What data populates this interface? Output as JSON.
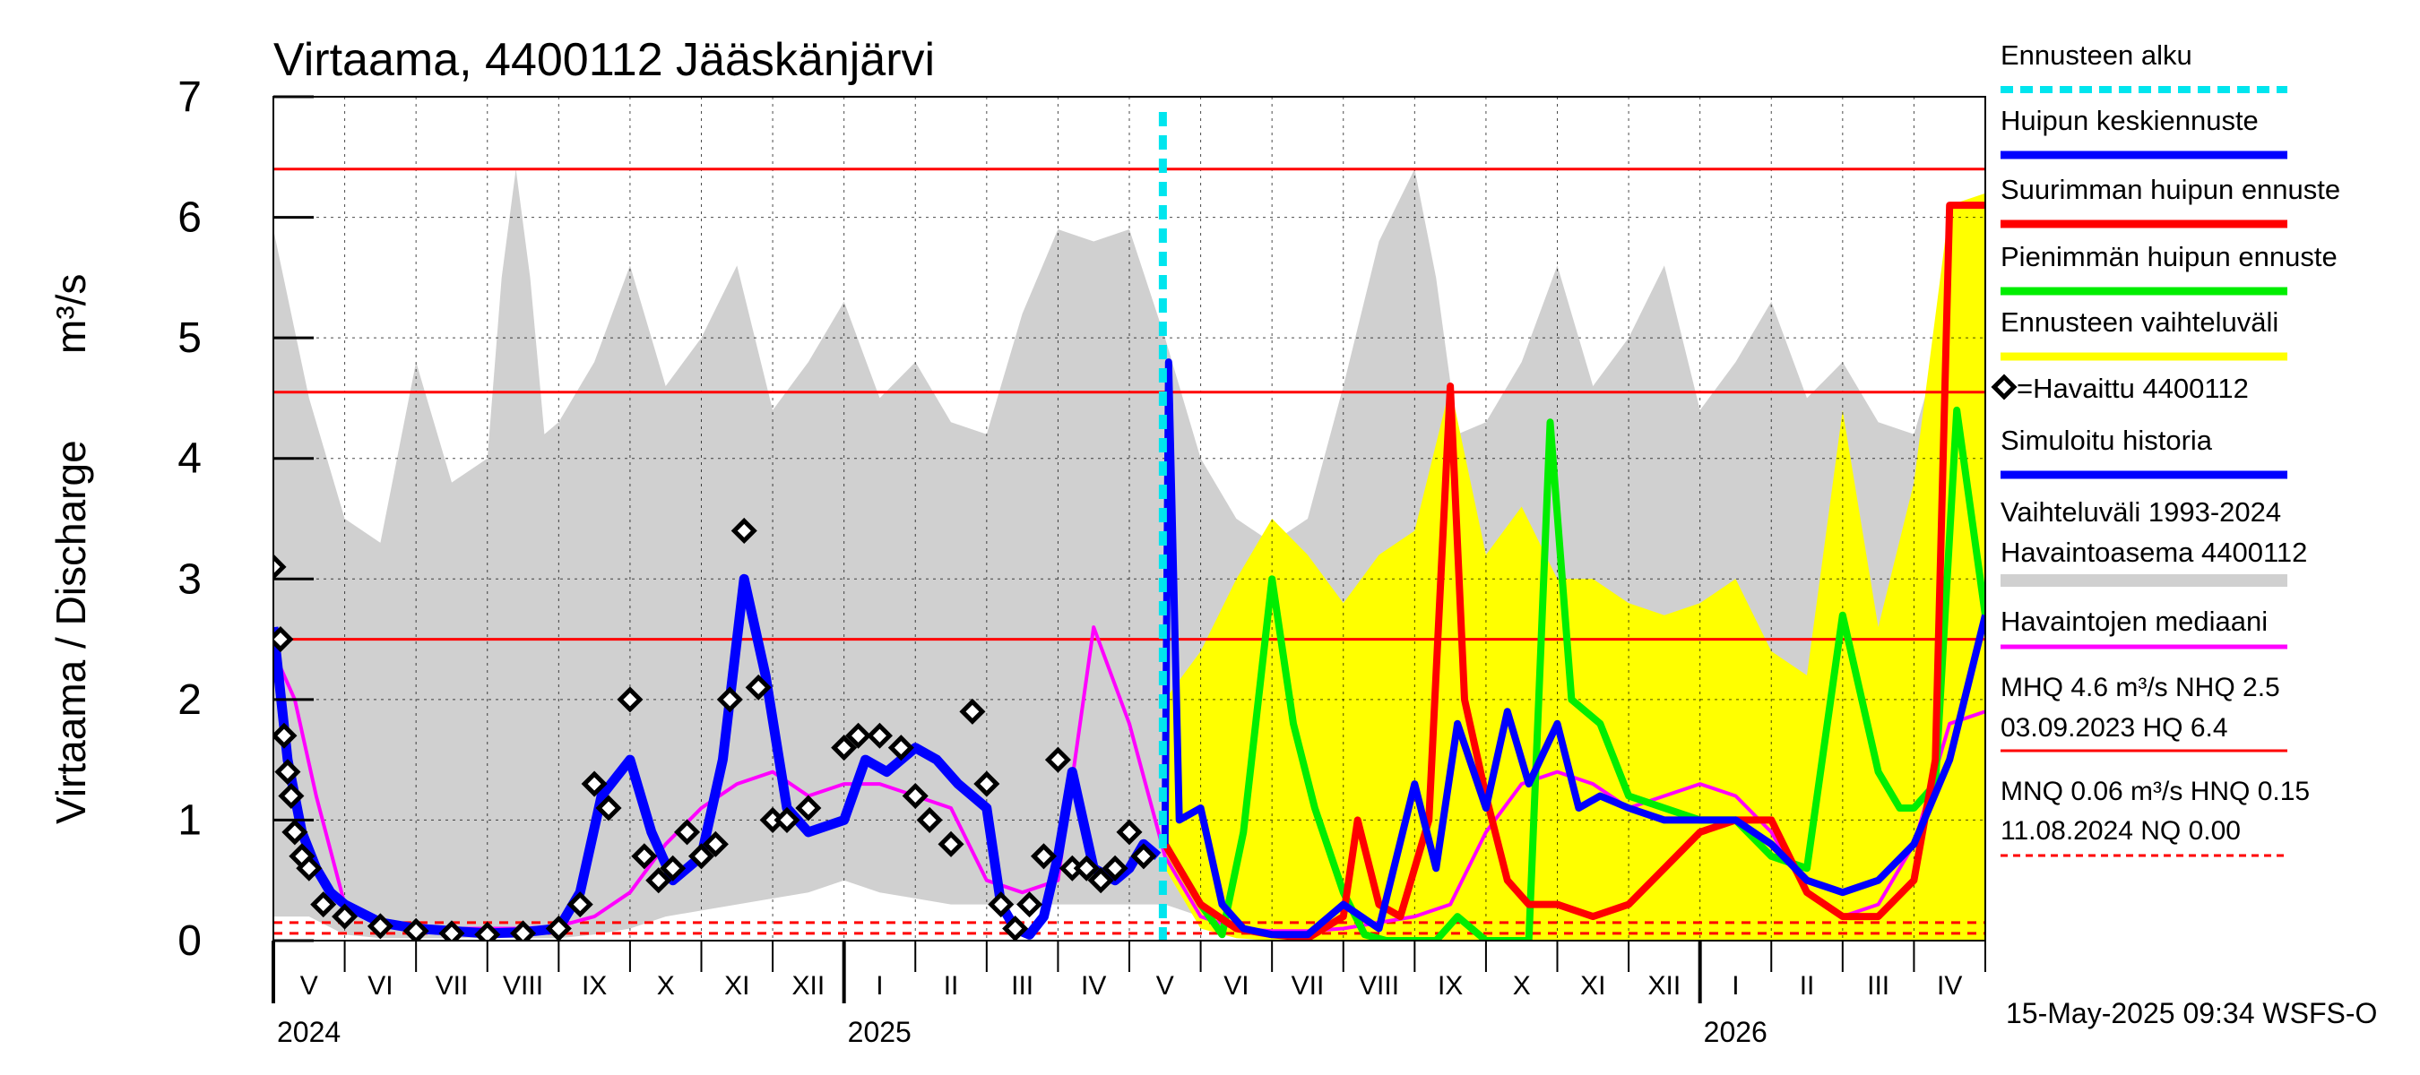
{
  "chart_data": {
    "type": "line",
    "title": "Virtaama, 4400112 Jääskänjärvi",
    "ylabel": "Virtaama / Discharge",
    "yunit": "m³/s",
    "ylim": [
      0,
      7
    ],
    "yticks": [
      0,
      1,
      2,
      3,
      4,
      5,
      6,
      7
    ],
    "xlim": [
      0,
      24
    ],
    "x_unit": "months since 2024-05-01",
    "months": [
      "V",
      "VI",
      "VII",
      "VIII",
      "IX",
      "X",
      "XI",
      "XII",
      "I",
      "II",
      "III",
      "IV",
      "V",
      "VI",
      "VII",
      "VIII",
      "IX",
      "X",
      "XI",
      "XII",
      "I",
      "II",
      "III",
      "IV"
    ],
    "years": [
      {
        "label": "2024",
        "x": 0
      },
      {
        "label": "2025",
        "x": 8
      },
      {
        "label": "2026",
        "x": 20
      }
    ],
    "forecast_start_x": 12.47,
    "reference_lines": [
      {
        "name": "HQ",
        "value": 6.4,
        "style": "solid"
      },
      {
        "name": "MHQ",
        "value": 4.55,
        "style": "solid"
      },
      {
        "name": "NHQ",
        "value": 2.5,
        "style": "solid"
      },
      {
        "name": "HNQ",
        "value": 0.15,
        "style": "dashed"
      },
      {
        "name": "MNQ",
        "value": 0.06,
        "style": "dashed"
      }
    ],
    "series": [
      {
        "name": "Vaihteluväli 1993-2024 Havaintoasema 4400112",
        "kind": "band",
        "color": "#d0d0d0",
        "x": [
          0,
          0.5,
          1,
          1.5,
          2,
          2.5,
          3,
          3.2,
          3.4,
          3.6,
          3.8,
          4,
          4.5,
          5,
          5.5,
          6,
          6.5,
          7,
          7.5,
          8,
          8.5,
          9,
          9.5,
          10,
          10.5,
          11,
          11.5,
          12,
          12.5,
          13,
          13.5,
          14,
          14.5,
          15,
          15.5,
          16,
          16.3,
          16.6,
          17,
          17.5,
          18,
          18.5,
          19,
          19.5,
          20,
          20.5,
          21,
          21.5,
          22,
          22.5,
          23,
          23.5,
          24
        ],
        "low": [
          0.2,
          0.2,
          0.05,
          0.02,
          0.02,
          0.02,
          0.02,
          0.02,
          0.02,
          0.02,
          0.02,
          0.02,
          0.05,
          0.1,
          0.2,
          0.25,
          0.3,
          0.35,
          0.4,
          0.5,
          0.4,
          0.35,
          0.3,
          0.3,
          0.3,
          0.3,
          0.3,
          0.3,
          0.3,
          0.2,
          0.1,
          0.05,
          0.05,
          0.02,
          0.02,
          0.02,
          0.02,
          0.02,
          0.02,
          0.05,
          0.1,
          0.2,
          0.25,
          0.3,
          0.35,
          0.4,
          0.35,
          0.3,
          0.3,
          0.3,
          0.3,
          0.3,
          0.2
        ],
        "high": [
          5.9,
          4.5,
          3.5,
          3.3,
          4.8,
          3.8,
          4.0,
          5.5,
          6.4,
          5.5,
          4.2,
          4.3,
          4.8,
          5.6,
          4.6,
          5.0,
          5.6,
          4.4,
          4.8,
          5.3,
          4.5,
          4.8,
          4.3,
          4.2,
          5.2,
          5.9,
          5.8,
          5.9,
          5.0,
          4.0,
          3.5,
          3.3,
          3.5,
          4.6,
          5.8,
          6.4,
          5.5,
          4.2,
          4.3,
          4.8,
          5.6,
          4.6,
          5.0,
          5.6,
          4.4,
          4.8,
          5.3,
          4.5,
          4.8,
          4.3,
          4.2,
          5.2,
          5.9
        ]
      },
      {
        "name": "Ennusteen vaihteluväli",
        "kind": "band",
        "color": "#ffff00",
        "x": [
          12.5,
          13,
          13.5,
          14,
          14.5,
          15,
          15.5,
          16,
          16.5,
          17,
          17.5,
          18,
          18.5,
          19,
          19.5,
          20,
          20.5,
          21,
          21.5,
          22,
          22.5,
          23,
          23.5,
          24
        ],
        "low": [
          0.6,
          0.1,
          0.02,
          0.0,
          0.0,
          0.0,
          0.0,
          0.0,
          0.0,
          0.0,
          0.0,
          0.0,
          0.0,
          0.0,
          0.0,
          0.0,
          0.0,
          0.0,
          0.0,
          0.0,
          0.0,
          0.0,
          0.0,
          0.0
        ],
        "high": [
          2.0,
          2.4,
          3.0,
          3.5,
          3.2,
          2.8,
          3.2,
          3.4,
          4.6,
          3.2,
          3.6,
          3.0,
          3.0,
          2.8,
          2.7,
          2.8,
          3.0,
          2.4,
          2.2,
          4.4,
          2.6,
          3.8,
          6.1,
          6.2
        ]
      },
      {
        "name": "Havaintojen mediaani",
        "kind": "line",
        "color": "#ff00ff",
        "x": [
          0,
          0.3,
          0.6,
          1,
          1.5,
          2,
          2.5,
          3,
          3.5,
          4,
          4.5,
          5,
          5.5,
          6,
          6.5,
          7,
          7.5,
          8,
          8.5,
          9,
          9.5,
          10,
          10.5,
          11,
          11.5,
          12,
          12.5,
          13,
          13.5,
          14,
          14.5,
          15,
          15.5,
          16,
          16.5,
          17,
          17.5,
          18,
          18.5,
          19,
          19.5,
          20,
          20.5,
          21,
          21.5,
          22,
          22.5,
          23,
          23.5,
          24
        ],
        "values": [
          2.4,
          2.0,
          1.2,
          0.3,
          0.15,
          0.1,
          0.1,
          0.1,
          0.1,
          0.12,
          0.2,
          0.4,
          0.8,
          1.1,
          1.3,
          1.4,
          1.2,
          1.3,
          1.3,
          1.2,
          1.1,
          0.5,
          0.4,
          0.5,
          2.6,
          1.8,
          0.7,
          0.2,
          0.1,
          0.08,
          0.08,
          0.1,
          0.15,
          0.2,
          0.3,
          0.9,
          1.3,
          1.4,
          1.3,
          1.1,
          1.2,
          1.3,
          1.2,
          0.9,
          0.4,
          0.2,
          0.3,
          0.8,
          1.8,
          1.9
        ]
      },
      {
        "name": "Simuloitu historia",
        "kind": "line",
        "color": "#0000ff",
        "x": [
          0,
          0.2,
          0.4,
          0.6,
          0.8,
          1,
          1.5,
          2,
          2.5,
          3,
          3.5,
          4,
          4.3,
          4.6,
          5,
          5.3,
          5.6,
          6,
          6.3,
          6.6,
          6.9,
          7.2,
          7.5,
          8,
          8.3,
          8.6,
          9,
          9.3,
          9.6,
          10,
          10.2,
          10.4,
          10.6,
          10.8,
          11,
          11.2,
          11.5,
          11.8,
          12,
          12.2,
          12.4
        ],
        "values": [
          2.6,
          1.5,
          0.9,
          0.6,
          0.4,
          0.3,
          0.15,
          0.1,
          0.08,
          0.06,
          0.07,
          0.1,
          0.4,
          1.2,
          1.5,
          0.9,
          0.5,
          0.7,
          1.5,
          3.0,
          2.2,
          1.1,
          0.9,
          1.0,
          1.5,
          1.4,
          1.6,
          1.5,
          1.3,
          1.1,
          0.3,
          0.1,
          0.05,
          0.2,
          0.7,
          1.4,
          0.6,
          0.5,
          0.6,
          0.8,
          0.7
        ]
      },
      {
        "name": "=Havaittu 4400112",
        "kind": "scatter",
        "color": "#000000",
        "x": [
          0,
          0.1,
          0.15,
          0.2,
          0.25,
          0.3,
          0.4,
          0.5,
          0.7,
          1,
          1.5,
          2,
          2.5,
          3,
          3.5,
          4,
          4.3,
          4.5,
          4.7,
          5,
          5.2,
          5.4,
          5.6,
          5.8,
          6,
          6.2,
          6.4,
          6.6,
          6.8,
          7,
          7.2,
          7.5,
          8,
          8.2,
          8.5,
          8.8,
          9,
          9.2,
          9.5,
          9.8,
          10,
          10.2,
          10.4,
          10.6,
          10.8,
          11,
          11.2,
          11.4,
          11.6,
          11.8,
          12,
          12.2
        ],
        "values": [
          3.1,
          2.5,
          1.7,
          1.4,
          1.2,
          0.9,
          0.7,
          0.6,
          0.3,
          0.2,
          0.12,
          0.08,
          0.06,
          0.05,
          0.06,
          0.1,
          0.3,
          1.3,
          1.1,
          2.0,
          0.7,
          0.5,
          0.6,
          0.9,
          0.7,
          0.8,
          2.0,
          3.4,
          2.1,
          1.0,
          1.0,
          1.1,
          1.6,
          1.7,
          1.7,
          1.6,
          1.2,
          1.0,
          0.8,
          1.9,
          1.3,
          0.3,
          0.1,
          0.3,
          0.7,
          1.5,
          0.6,
          0.6,
          0.5,
          0.6,
          0.9,
          0.7
        ]
      },
      {
        "name": "Huipun keskiennuste",
        "kind": "line",
        "color": "#0000ff",
        "x": [
          12.5,
          12.55,
          12.7,
          13,
          13.3,
          13.6,
          14,
          14.5,
          15,
          15.5,
          16,
          16.3,
          16.6,
          17,
          17.3,
          17.6,
          18,
          18.3,
          18.6,
          19,
          19.5,
          20,
          20.5,
          21,
          21.5,
          22,
          22.5,
          23,
          23.5,
          24
        ],
        "values": [
          0.8,
          4.8,
          1.0,
          1.1,
          0.3,
          0.1,
          0.05,
          0.05,
          0.3,
          0.1,
          1.3,
          0.6,
          1.8,
          1.1,
          1.9,
          1.3,
          1.8,
          1.1,
          1.2,
          1.1,
          1.0,
          1.0,
          1.0,
          0.8,
          0.5,
          0.4,
          0.5,
          0.8,
          1.5,
          2.7
        ]
      },
      {
        "name": "Suurimman huipun ennuste",
        "kind": "line",
        "color": "#ff0000",
        "x": [
          12.5,
          13,
          13.5,
          14,
          14.5,
          15,
          15.2,
          15.5,
          15.8,
          16.2,
          16.5,
          16.7,
          17,
          17.3,
          17.6,
          18,
          18.5,
          19,
          19.5,
          20,
          20.5,
          21,
          21.5,
          22,
          22.5,
          23,
          23.3,
          23.5,
          24
        ],
        "values": [
          0.8,
          0.3,
          0.1,
          0.05,
          0.02,
          0.2,
          1.0,
          0.3,
          0.2,
          1.0,
          4.6,
          2.0,
          1.2,
          0.5,
          0.3,
          0.3,
          0.2,
          0.3,
          0.6,
          0.9,
          1.0,
          1.0,
          0.4,
          0.2,
          0.2,
          0.5,
          1.5,
          6.1,
          6.1
        ]
      },
      {
        "name": "Pienimmän huipun ennuste",
        "kind": "line",
        "color": "#00ee00",
        "x": [
          12.5,
          13,
          13.3,
          13.6,
          14,
          14.3,
          14.6,
          15,
          15.3,
          15.6,
          16,
          16.3,
          16.6,
          17,
          17.3,
          17.6,
          17.9,
          18.2,
          18.6,
          19,
          19.5,
          20,
          20.5,
          21,
          21.5,
          22,
          22.5,
          22.8,
          23,
          23.3,
          23.6,
          24
        ],
        "values": [
          0.8,
          0.3,
          0.05,
          0.9,
          3.0,
          1.8,
          1.1,
          0.4,
          0.05,
          0.0,
          0.0,
          0.0,
          0.2,
          0.0,
          0.0,
          0.0,
          4.3,
          2.0,
          1.8,
          1.2,
          1.1,
          1.0,
          1.0,
          0.7,
          0.6,
          2.7,
          1.4,
          1.1,
          1.1,
          1.3,
          4.4,
          2.7
        ]
      }
    ],
    "legend": {
      "position": "right",
      "items": [
        {
          "label": "Ennusteen alku",
          "color": "#00e5ee",
          "style": "dashed"
        },
        {
          "label": "Huipun keskiennuste",
          "color": "#0000ff",
          "style": "line"
        },
        {
          "label": "Suurimman huipun ennuste",
          "color": "#ff0000",
          "style": "line"
        },
        {
          "label": "Pienimmän huipun ennuste",
          "color": "#00ee00",
          "style": "line"
        },
        {
          "label": "Ennusteen vaihteluväli",
          "color": "#ffff00",
          "style": "line"
        },
        {
          "label": "=Havaittu 4400112",
          "color": "#000000",
          "style": "diamond"
        },
        {
          "label": "Simuloitu historia",
          "color": "#0000ff",
          "style": "line"
        },
        {
          "label": "Vaihteluväli 1993-2024",
          "label2": " Havaintoasema 4400112",
          "color": "#d0d0d0",
          "style": "line"
        },
        {
          "label": "Havaintojen mediaani",
          "color": "#ff00ff",
          "style": "line"
        }
      ],
      "stats": [
        {
          "line1": "MHQ  4.6 m³/s NHQ  2.5",
          "line2": "03.09.2023 HQ  6.4",
          "color": "#ff0000",
          "style": "solid"
        },
        {
          "line1": "MNQ 0.06 m³/s HNQ 0.15",
          "line2": "11.08.2024 NQ 0.00",
          "color": "#ff0000",
          "style": "dashed"
        }
      ]
    },
    "footer": "15-May-2025 09:34 WSFS-O"
  }
}
